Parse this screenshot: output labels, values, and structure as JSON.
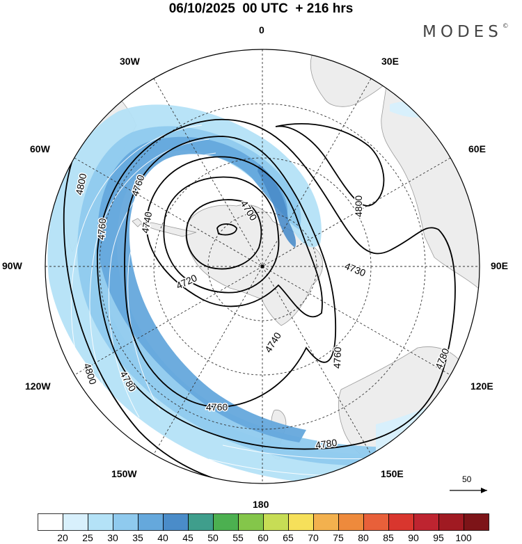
{
  "header": {
    "title": "06/10/2025  00 UTC  + 216 hrs",
    "logo": "MODES",
    "logo_mark": "©"
  },
  "map": {
    "projection": "south-polar-stereographic",
    "longitude_labels": {
      "top": "0",
      "top_right": "30E",
      "right_upper": "60E",
      "right": "90E",
      "right_lower": "120E",
      "bottom_right": "150E",
      "bottom": "180",
      "bottom_left": "150W",
      "left_lower": "120W",
      "left": "90W",
      "left_upper": "60W",
      "top_left": "30W"
    },
    "contour_labels": [
      {
        "id": "c4800a",
        "text": "4800"
      },
      {
        "id": "c4760a",
        "text": "4760"
      },
      {
        "id": "c4760b",
        "text": "4760"
      },
      {
        "id": "c4740a",
        "text": "4740"
      },
      {
        "id": "c4700",
        "text": "4700"
      },
      {
        "id": "c4800b",
        "text": "4800"
      },
      {
        "id": "c4730",
        "text": "4730"
      },
      {
        "id": "c4720",
        "text": "4720"
      },
      {
        "id": "c4740b",
        "text": "4740"
      },
      {
        "id": "c4760c",
        "text": "4760"
      },
      {
        "id": "c4780a",
        "text": "4780"
      },
      {
        "id": "c4800c",
        "text": "4800"
      },
      {
        "id": "c4780b",
        "text": "4780"
      },
      {
        "id": "c4760d",
        "text": "4760"
      },
      {
        "id": "c4780c",
        "text": "4780"
      }
    ],
    "reference_vector": "50",
    "colors": {
      "land": "#ededed",
      "land_edge": "#9a9a9a",
      "ocean": "#ffffff",
      "contour": "#000000"
    }
  },
  "colorbar": {
    "ticks": [
      "20",
      "25",
      "30",
      "35",
      "40",
      "45",
      "50",
      "55",
      "60",
      "65",
      "70",
      "75",
      "80",
      "85",
      "90",
      "95",
      "100"
    ],
    "colors": [
      "#ffffff",
      "#d8f0fc",
      "#b4e2f7",
      "#8fcaee",
      "#65a8dc",
      "#4a8cc9",
      "#3f9e8c",
      "#4cb050",
      "#84c64a",
      "#c7dd55",
      "#f6e05a",
      "#f3b14e",
      "#ee8a3c",
      "#e8603a",
      "#d9362e",
      "#be2430",
      "#a01a22",
      "#7d1418"
    ]
  }
}
